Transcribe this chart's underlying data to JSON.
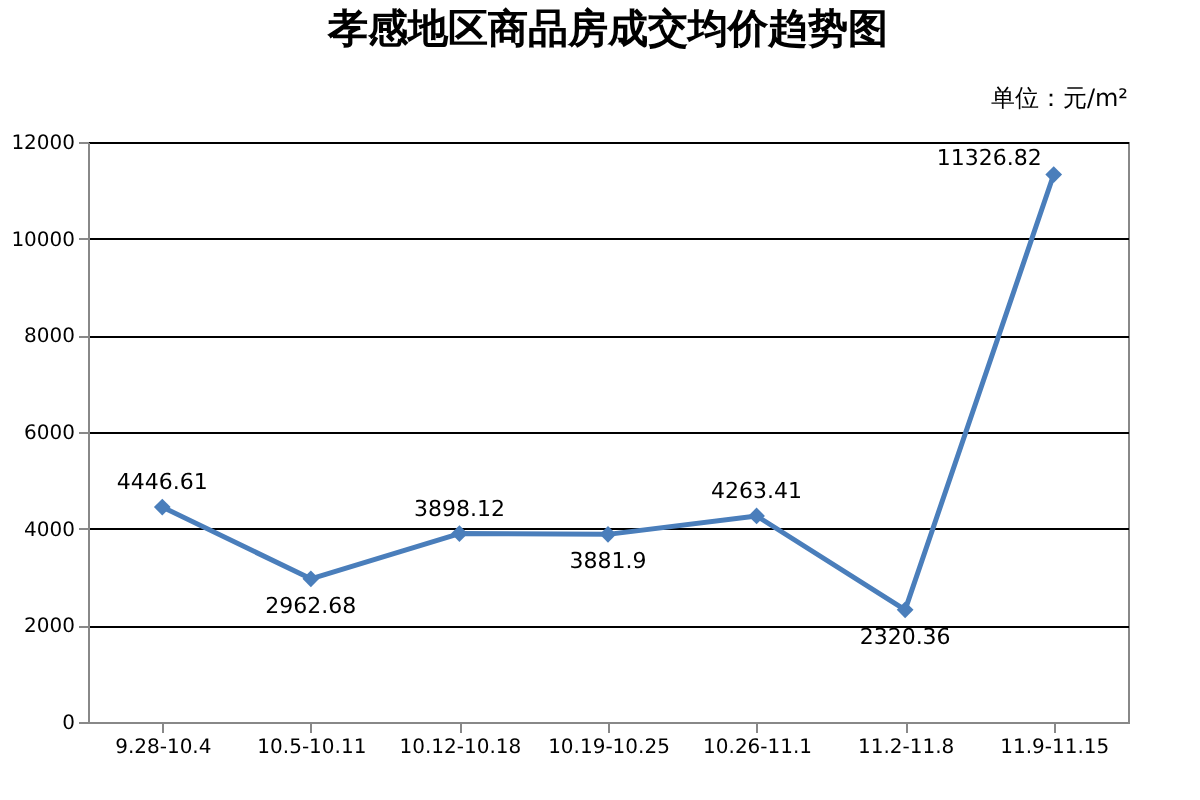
{
  "chart_data": {
    "type": "line",
    "title": "孝感地区商品房成交均价趋势图",
    "annotations": [
      "单位：元/m²"
    ],
    "categories": [
      "9.28-10.4",
      "10.5-10.11",
      "10.12-10.18",
      "10.19-10.25",
      "10.26-11.1",
      "11.2-11.8",
      "11.9-11.15"
    ],
    "series": [
      {
        "color": "#4a7ebb",
        "values": [
          4446.61,
          2962.68,
          3898.12,
          3881.9,
          4263.41,
          2320.36,
          11326.82
        ]
      }
    ],
    "ylim": [
      0,
      12000
    ],
    "yticks": [
      0,
      2000,
      4000,
      6000,
      8000,
      10000,
      12000
    ],
    "grid": "y",
    "marker": "diamond",
    "line_style": "solid",
    "data_labels": true
  }
}
